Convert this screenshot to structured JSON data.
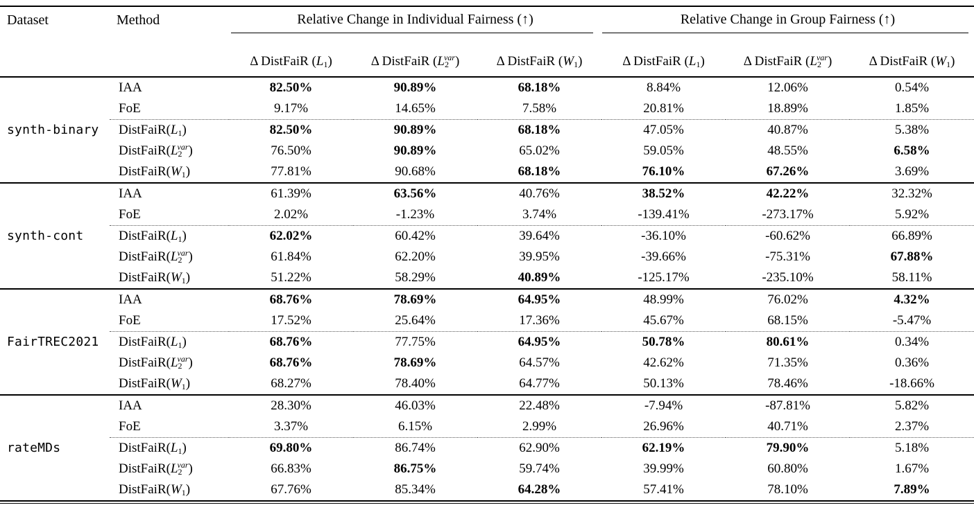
{
  "header": {
    "dataset": "Dataset",
    "method": "Method",
    "group1": "Relative Change in Individual Fairness (↑)",
    "group2": "Relative Change in Group Fairness (↑)",
    "subcols": [
      {
        "p": "Δ DistFaiR (",
        "l": "L",
        "sb": "1",
        "sp": "",
        "s": ")"
      },
      {
        "p": "Δ DistFaiR (",
        "l": "L",
        "sb": "2",
        "sp": "var",
        "s": ")"
      },
      {
        "p": "Δ DistFaiR (",
        "l": "W",
        "sb": "1",
        "sp": "",
        "s": ")"
      },
      {
        "p": "Δ DistFaiR (",
        "l": "L",
        "sb": "1",
        "sp": "",
        "s": ")"
      },
      {
        "p": "Δ DistFaiR (",
        "l": "L",
        "sb": "2",
        "sp": "var",
        "s": ")"
      },
      {
        "p": "Δ DistFaiR (",
        "l": "W",
        "sb": "1",
        "sp": "",
        "s": ")"
      }
    ]
  },
  "blocks": [
    {
      "dataset": "synth-binary",
      "rows": [
        {
          "m": {
            "p": "IAA",
            "l": "",
            "sb": "",
            "sp": "",
            "s": ""
          },
          "v": [
            "82.50%",
            "90.89%",
            "68.18%",
            "8.84%",
            "12.06%",
            "0.54%"
          ],
          "b": [
            1,
            1,
            1,
            0,
            0,
            0
          ]
        },
        {
          "m": {
            "p": "FoE",
            "l": "",
            "sb": "",
            "sp": "",
            "s": ""
          },
          "v": [
            "9.17%",
            "14.65%",
            "7.58%",
            "20.81%",
            "18.89%",
            "1.85%"
          ],
          "b": [
            0,
            0,
            0,
            0,
            0,
            0
          ]
        },
        {
          "m": {
            "p": "DistFaiR(",
            "l": "L",
            "sb": "1",
            "sp": "",
            "s": ")"
          },
          "v": [
            "82.50%",
            "90.89%",
            "68.18%",
            "47.05%",
            "40.87%",
            "5.38%"
          ],
          "b": [
            1,
            1,
            1,
            0,
            0,
            0
          ]
        },
        {
          "m": {
            "p": "DistFaiR(",
            "l": "L",
            "sb": "2",
            "sp": "var",
            "s": ")"
          },
          "v": [
            "76.50%",
            "90.89%",
            "65.02%",
            "59.05%",
            "48.55%",
            "6.58%"
          ],
          "b": [
            0,
            1,
            0,
            0,
            0,
            1
          ]
        },
        {
          "m": {
            "p": "DistFaiR(",
            "l": "W",
            "sb": "1",
            "sp": "",
            "s": ")"
          },
          "v": [
            "77.81%",
            "90.68%",
            "68.18%",
            "76.10%",
            "67.26%",
            "3.69%"
          ],
          "b": [
            0,
            0,
            1,
            1,
            1,
            0
          ]
        }
      ]
    },
    {
      "dataset": "synth-cont",
      "rows": [
        {
          "m": {
            "p": "IAA",
            "l": "",
            "sb": "",
            "sp": "",
            "s": ""
          },
          "v": [
            "61.39%",
            "63.56%",
            "40.76%",
            "38.52%",
            "42.22%",
            "32.32%"
          ],
          "b": [
            0,
            1,
            0,
            1,
            1,
            0
          ]
        },
        {
          "m": {
            "p": "FoE",
            "l": "",
            "sb": "",
            "sp": "",
            "s": ""
          },
          "v": [
            "2.02%",
            "-1.23%",
            "3.74%",
            "-139.41%",
            "-273.17%",
            "5.92%"
          ],
          "b": [
            0,
            0,
            0,
            0,
            0,
            0
          ]
        },
        {
          "m": {
            "p": "DistFaiR(",
            "l": "L",
            "sb": "1",
            "sp": "",
            "s": ")"
          },
          "v": [
            "62.02%",
            "60.42%",
            "39.64%",
            "-36.10%",
            "-60.62%",
            "66.89%"
          ],
          "b": [
            1,
            0,
            0,
            0,
            0,
            0
          ]
        },
        {
          "m": {
            "p": "DistFaiR(",
            "l": "L",
            "sb": "2",
            "sp": "var",
            "s": ")"
          },
          "v": [
            "61.84%",
            "62.20%",
            "39.95%",
            "-39.66%",
            "-75.31%",
            "67.88%"
          ],
          "b": [
            0,
            0,
            0,
            0,
            0,
            1
          ]
        },
        {
          "m": {
            "p": "DistFaiR(",
            "l": "W",
            "sb": "1",
            "sp": "",
            "s": ")"
          },
          "v": [
            "51.22%",
            "58.29%",
            "40.89%",
            "-125.17%",
            "-235.10%",
            "58.11%"
          ],
          "b": [
            0,
            0,
            1,
            0,
            0,
            0
          ]
        }
      ]
    },
    {
      "dataset": "FairTREC2021",
      "rows": [
        {
          "m": {
            "p": "IAA",
            "l": "",
            "sb": "",
            "sp": "",
            "s": ""
          },
          "v": [
            "68.76%",
            "78.69%",
            "64.95%",
            "48.99%",
            "76.02%",
            "4.32%"
          ],
          "b": [
            1,
            1,
            1,
            0,
            0,
            1
          ]
        },
        {
          "m": {
            "p": "FoE",
            "l": "",
            "sb": "",
            "sp": "",
            "s": ""
          },
          "v": [
            "17.52%",
            "25.64%",
            "17.36%",
            "45.67%",
            "68.15%",
            "-5.47%"
          ],
          "b": [
            0,
            0,
            0,
            0,
            0,
            0
          ]
        },
        {
          "m": {
            "p": "DistFaiR(",
            "l": "L",
            "sb": "1",
            "sp": "",
            "s": ")"
          },
          "v": [
            "68.76%",
            "77.75%",
            "64.95%",
            "50.78%",
            "80.61%",
            "0.34%"
          ],
          "b": [
            1,
            0,
            1,
            1,
            1,
            0
          ]
        },
        {
          "m": {
            "p": "DistFaiR(",
            "l": "L",
            "sb": "2",
            "sp": "var",
            "s": ")"
          },
          "v": [
            "68.76%",
            "78.69%",
            "64.57%",
            "42.62%",
            "71.35%",
            "0.36%"
          ],
          "b": [
            1,
            1,
            0,
            0,
            0,
            0
          ]
        },
        {
          "m": {
            "p": "DistFaiR(",
            "l": "W",
            "sb": "1",
            "sp": "",
            "s": ")"
          },
          "v": [
            "68.27%",
            "78.40%",
            "64.77%",
            "50.13%",
            "78.46%",
            "-18.66%"
          ],
          "b": [
            0,
            0,
            0,
            0,
            0,
            0
          ]
        }
      ]
    },
    {
      "dataset": "rateMDs",
      "rows": [
        {
          "m": {
            "p": "IAA",
            "l": "",
            "sb": "",
            "sp": "",
            "s": ""
          },
          "v": [
            "28.30%",
            "46.03%",
            "22.48%",
            "-7.94%",
            "-87.81%",
            "5.82%"
          ],
          "b": [
            0,
            0,
            0,
            0,
            0,
            0
          ]
        },
        {
          "m": {
            "p": "FoE",
            "l": "",
            "sb": "",
            "sp": "",
            "s": ""
          },
          "v": [
            "3.37%",
            "6.15%",
            "2.99%",
            "26.96%",
            "40.71%",
            "2.37%"
          ],
          "b": [
            0,
            0,
            0,
            0,
            0,
            0
          ]
        },
        {
          "m": {
            "p": "DistFaiR(",
            "l": "L",
            "sb": "1",
            "sp": "",
            "s": ")"
          },
          "v": [
            "69.80%",
            "86.74%",
            "62.90%",
            "62.19%",
            "79.90%",
            "5.18%"
          ],
          "b": [
            1,
            0,
            0,
            1,
            1,
            0
          ]
        },
        {
          "m": {
            "p": "DistFaiR(",
            "l": "L",
            "sb": "2",
            "sp": "var",
            "s": ")"
          },
          "v": [
            "66.83%",
            "86.75%",
            "59.74%",
            "39.99%",
            "60.80%",
            "1.67%"
          ],
          "b": [
            0,
            1,
            0,
            0,
            0,
            0
          ]
        },
        {
          "m": {
            "p": "DistFaiR(",
            "l": "W",
            "sb": "1",
            "sp": "",
            "s": ")"
          },
          "v": [
            "67.76%",
            "85.34%",
            "64.28%",
            "57.41%",
            "78.10%",
            "7.89%"
          ],
          "b": [
            0,
            0,
            1,
            0,
            0,
            1
          ]
        }
      ]
    }
  ]
}
